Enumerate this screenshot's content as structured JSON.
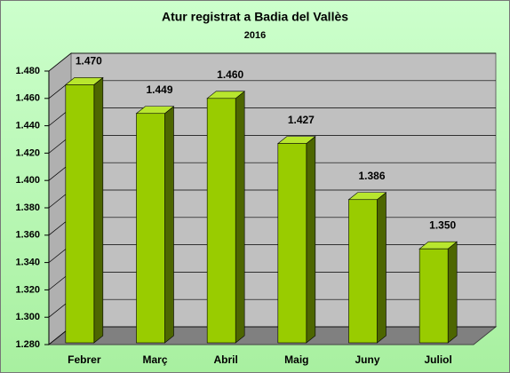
{
  "chart_data": {
    "type": "bar3d",
    "title": "Atur registrat a Badia del Vallès",
    "subtitle": "2016",
    "categories": [
      "Febrer",
      "Març",
      "Abril",
      "Maig",
      "Juny",
      "Juliol"
    ],
    "values": [
      1470,
      1449,
      1460,
      1427,
      1386,
      1350
    ],
    "value_labels": [
      "1.470",
      "1.449",
      "1.460",
      "1.427",
      "1.386",
      "1.350"
    ],
    "color": "#99cc00",
    "ylim": [
      1280,
      1480
    ],
    "yticks": [
      {
        "value": 1280,
        "label": "1.280"
      },
      {
        "value": 1300,
        "label": "1.300"
      },
      {
        "value": 1320,
        "label": "1.320"
      },
      {
        "value": 1340,
        "label": "1.340"
      },
      {
        "value": 1360,
        "label": "1.360"
      },
      {
        "value": 1380,
        "label": "1.380"
      },
      {
        "value": 1400,
        "label": "1.400"
      },
      {
        "value": 1420,
        "label": "1.420"
      },
      {
        "value": 1440,
        "label": "1.440"
      },
      {
        "value": 1460,
        "label": "1.460"
      },
      {
        "value": 1480,
        "label": "1.480"
      }
    ],
    "grid": true
  }
}
